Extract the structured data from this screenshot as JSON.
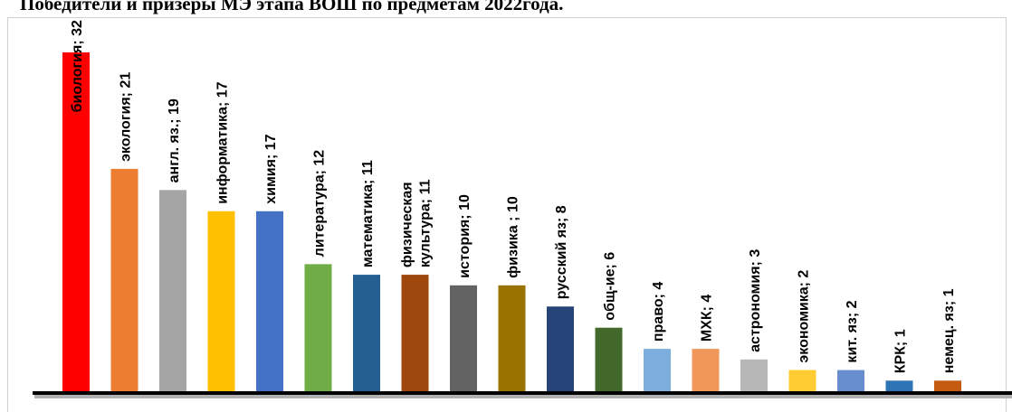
{
  "chart_data": {
    "type": "bar",
    "title": "Победители и призеры МЭ этапа ВОШ по предметам 2022года.",
    "label_separator": "; ",
    "categories": [
      "биология",
      "экология",
      "англ. яз.",
      "информатика",
      "химия",
      "литература",
      "математика",
      "физическая культура",
      "история",
      "физика ",
      "русский яз",
      "общ-ие",
      "право",
      "МХК",
      "астрономия",
      "экономика",
      "кит. яз",
      "КРК",
      "немец. яз"
    ],
    "values": [
      32,
      21,
      19,
      17,
      17,
      12,
      11,
      11,
      10,
      10,
      8,
      6,
      4,
      4,
      3,
      2,
      2,
      1,
      1
    ],
    "colors": [
      "#ff0000",
      "#ed7d31",
      "#a5a5a5",
      "#ffc000",
      "#4472c4",
      "#70ad47",
      "#255e91",
      "#9e480e",
      "#636363",
      "#997300",
      "#264478",
      "#43682b",
      "#7cafdd",
      "#f1975a",
      "#b7b7b7",
      "#ffcd33",
      "#698ed0",
      "#2e75b6",
      "#c55a11"
    ]
  }
}
